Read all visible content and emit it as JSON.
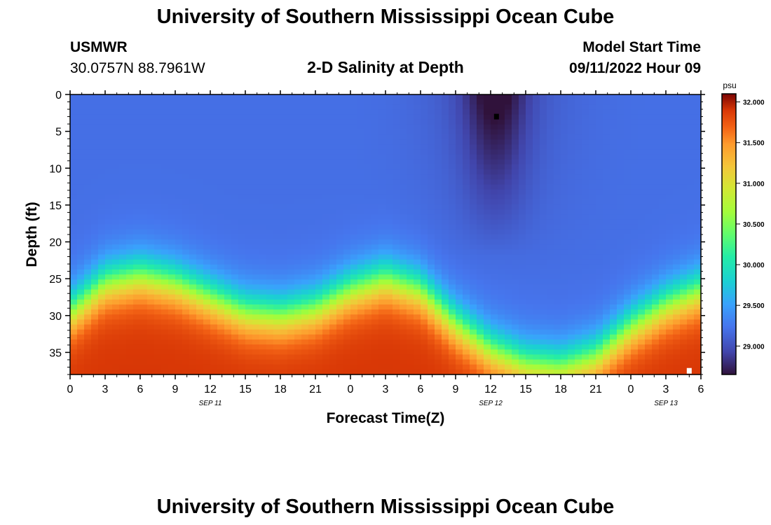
{
  "header": {
    "title": "University of Southern Mississippi Ocean Cube",
    "station": "USMWR",
    "coords": "30.0757N  88.7961W",
    "subtitle": "2-D Salinity at Depth",
    "model_start_label": "Model Start Time",
    "model_start_value": "09/11/2022 Hour 09"
  },
  "footer": {
    "title": "University of Southern Mississippi Ocean Cube"
  },
  "chart_data": {
    "type": "heatmap",
    "title": "2-D Salinity at Depth",
    "xlabel": "Forecast Time(Z)",
    "ylabel": "Depth (ft)",
    "x_tick_labels": [
      "0",
      "3",
      "6",
      "9",
      "12",
      "15",
      "18",
      "21",
      "0",
      "3",
      "6",
      "9",
      "12",
      "15",
      "18",
      "21",
      "0",
      "3",
      "6"
    ],
    "x_range_hours": [
      0,
      54
    ],
    "date_labels": [
      {
        "label": "SEP 11",
        "hour": 12
      },
      {
        "label": "SEP 12",
        "hour": 36
      },
      {
        "label": "SEP 13",
        "hour": 51
      }
    ],
    "y_ticks": [
      0,
      5,
      10,
      15,
      20,
      25,
      30,
      35
    ],
    "y_range_ft": [
      0,
      38
    ],
    "colorbar": {
      "unit": "psu",
      "ticks": [
        "32.000",
        "31.500",
        "31.000",
        "30.500",
        "30.000",
        "29.500",
        "29.000"
      ],
      "range": [
        28.65,
        32.1
      ]
    },
    "model": {
      "surface_salinity": 29.2,
      "bottom_salinity": 31.9,
      "halocline_depth_ft_by_hour": [
        [
          0,
          27
        ],
        [
          3,
          23
        ],
        [
          6,
          22
        ],
        [
          9,
          23
        ],
        [
          12,
          25
        ],
        [
          15,
          27
        ],
        [
          18,
          27.5
        ],
        [
          21,
          26.5
        ],
        [
          24,
          24
        ],
        [
          27,
          22.5
        ],
        [
          30,
          24
        ],
        [
          33,
          28.5
        ],
        [
          36,
          32
        ],
        [
          39,
          34
        ],
        [
          42,
          34.5
        ],
        [
          45,
          33
        ],
        [
          48,
          29
        ],
        [
          51,
          26
        ],
        [
          54,
          24
        ]
      ],
      "freshwater_plume": {
        "center_hour": 36.4,
        "min_salinity": 28.7,
        "max_depth_ft": 22
      }
    },
    "markers": [
      {
        "hour": 36.5,
        "depth_ft": 3,
        "color": "#000000"
      },
      {
        "hour": 53.0,
        "depth_ft": 37.5,
        "color": "#ffffff"
      }
    ]
  }
}
